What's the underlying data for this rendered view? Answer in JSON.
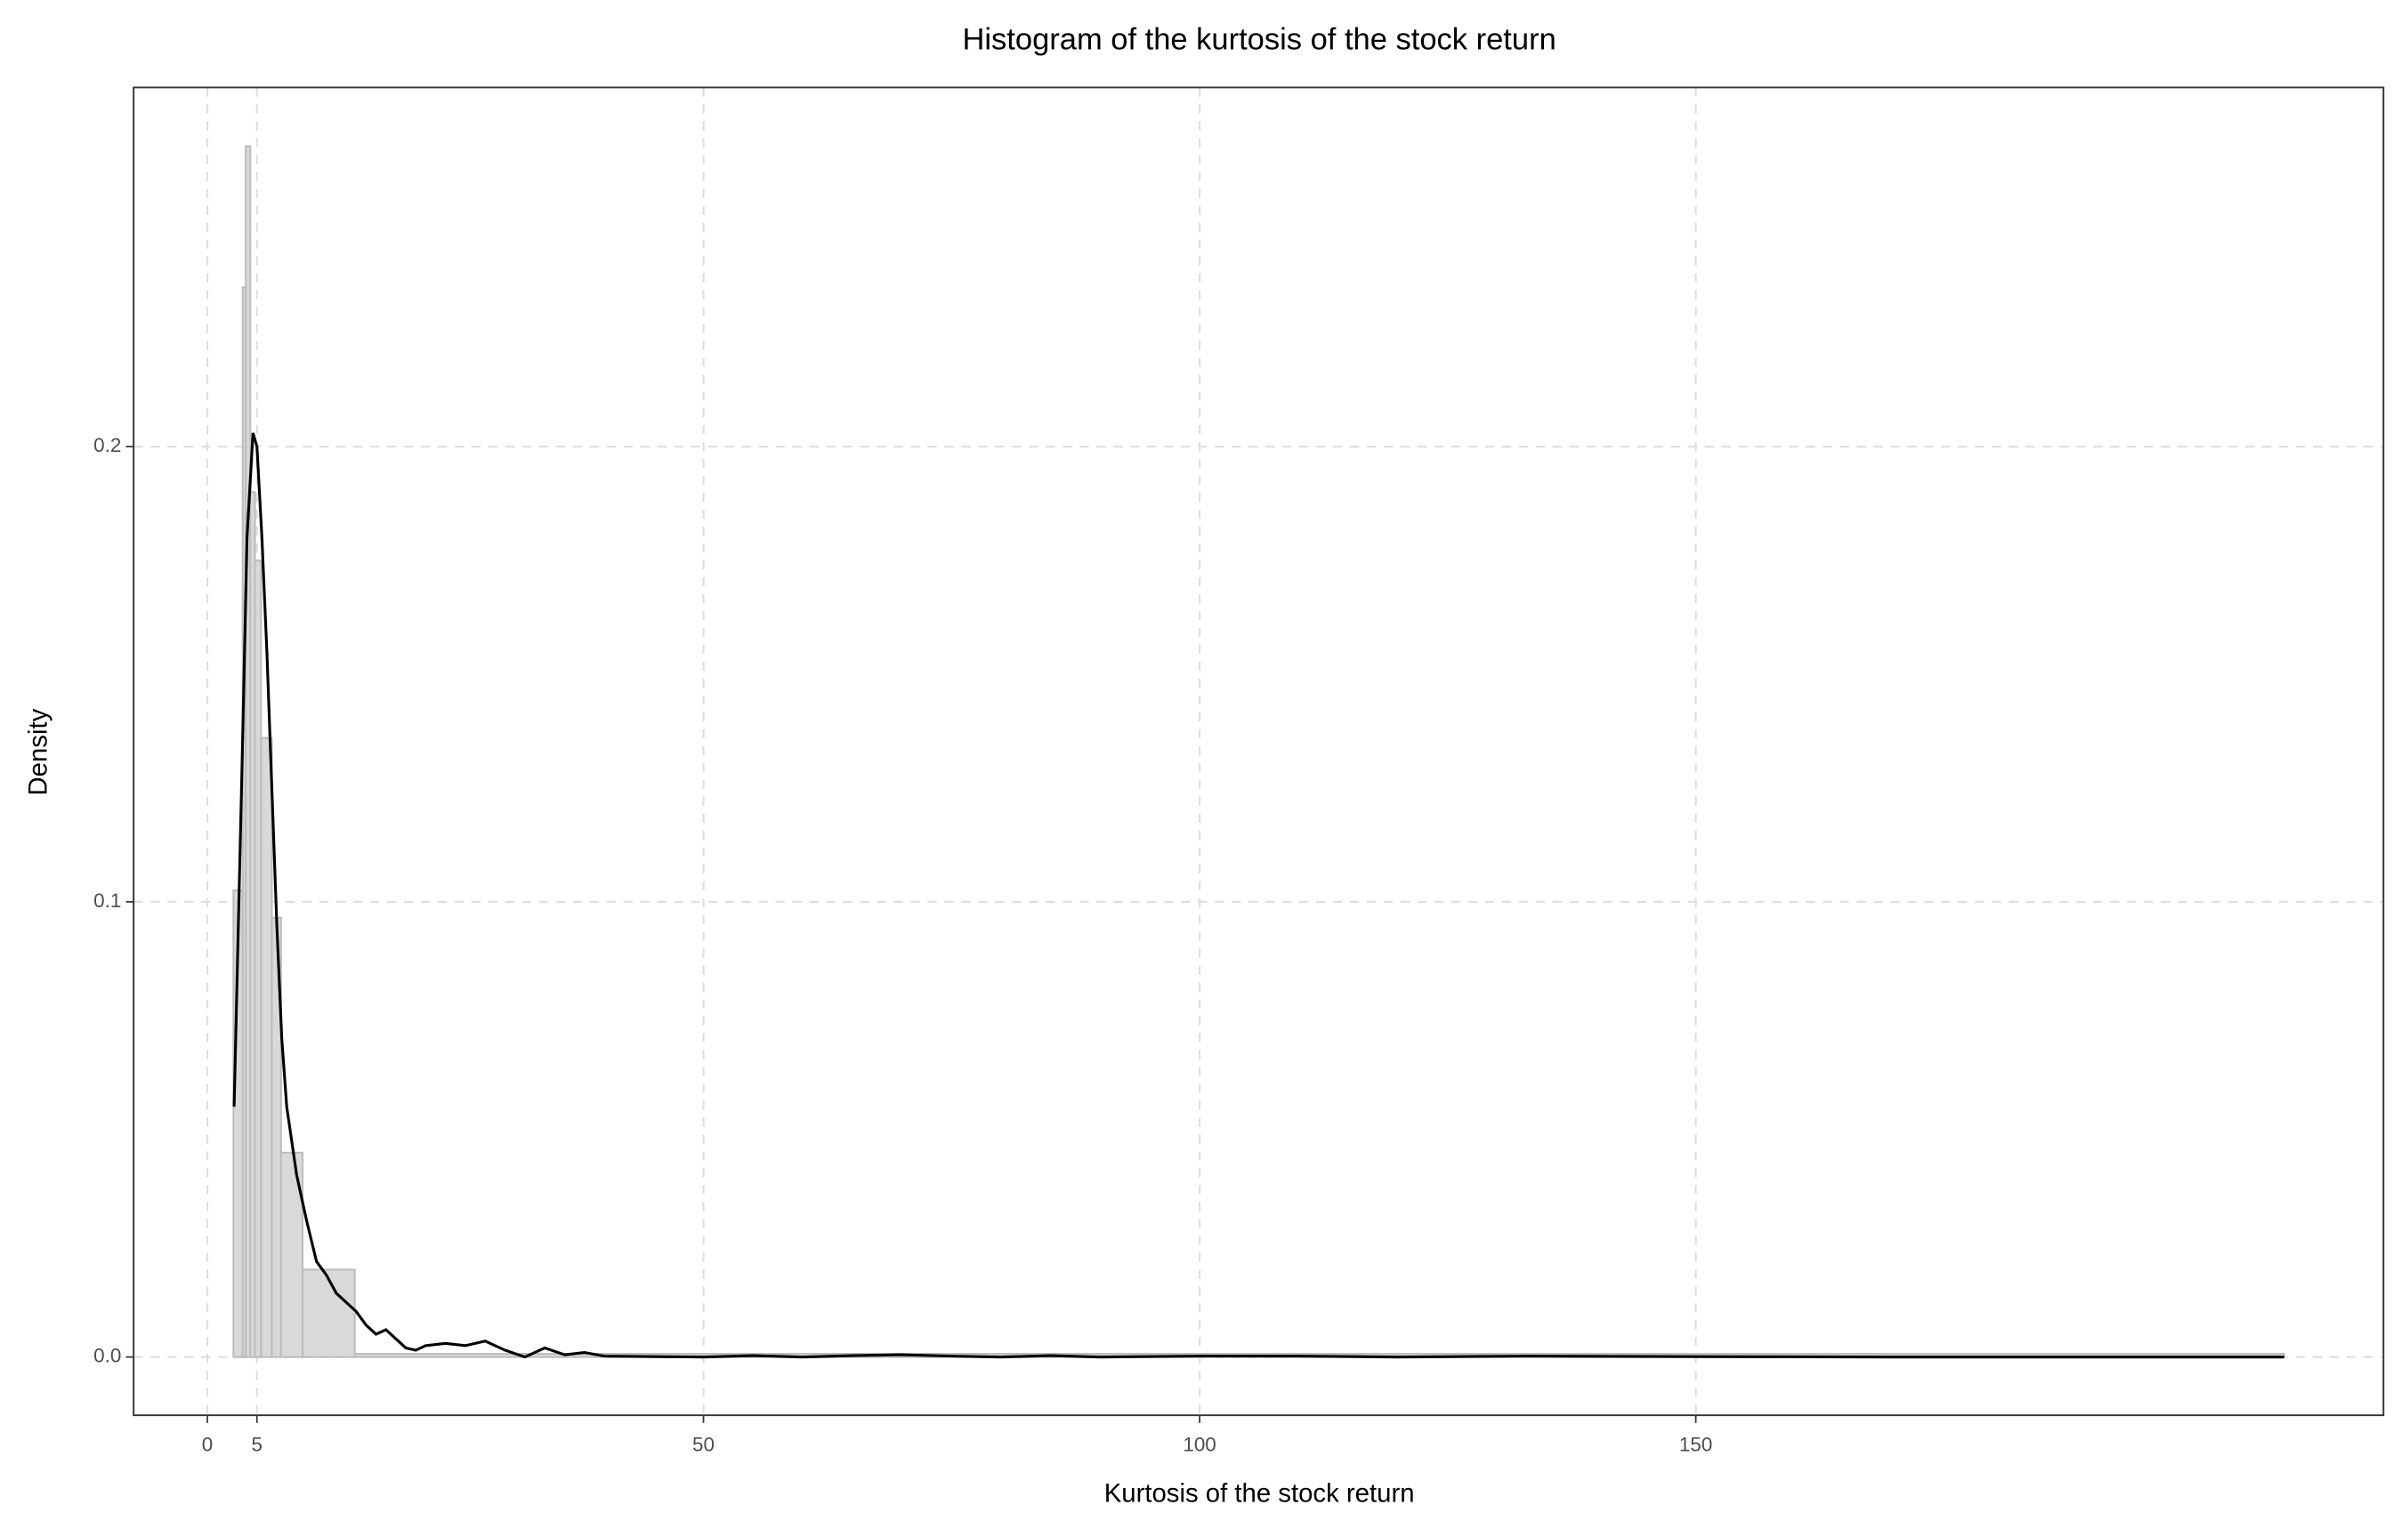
{
  "chart_data": {
    "type": "histogram",
    "title": "Histogram of the kurtosis of the stock return",
    "x_label": "Kurtosis of the stock return",
    "y_label": "Density",
    "bins": [
      2.63,
      3.56,
      3.87,
      4.33,
      4.8,
      5.42,
      6.5,
      7.43,
      9.6,
      14.86,
      209.3
    ],
    "values": [
      0.1025,
      0.235,
      0.266,
      0.19,
      0.175,
      0.136,
      0.0965,
      0.0449,
      0.0192,
      0.0007
    ],
    "color": "#d9d9d9",
    "edge_color": "#bdbdbd",
    "density": {
      "color": "#000000",
      "x": [
        2.7,
        3.5,
        4,
        4.6,
        5,
        5.5,
        6,
        6.5,
        7,
        7.5,
        8,
        9,
        10,
        11,
        12,
        13,
        14,
        15,
        16,
        17,
        18,
        19,
        20,
        21,
        22,
        24,
        26,
        28,
        30,
        32,
        34,
        36,
        38,
        40,
        45,
        50,
        55,
        60,
        65,
        70,
        75,
        80,
        85,
        90,
        100,
        110,
        120,
        133,
        150,
        170,
        209.3
      ],
      "y": [
        0.055,
        0.13,
        0.18,
        0.203,
        0.2,
        0.18,
        0.155,
        0.125,
        0.095,
        0.07,
        0.055,
        0.04,
        0.03,
        0.021,
        0.018,
        0.014,
        0.012,
        0.01,
        0.007,
        0.005,
        0.006,
        0.004,
        0.002,
        0.0015,
        0.0025,
        0.003,
        0.0025,
        0.0035,
        0.0015,
        0,
        0.002,
        0.0005,
        0.001,
        0.0002,
        0.0001,
        0,
        0.0003,
        0,
        0.0003,
        0.0005,
        0.0002,
        0,
        0.0003,
        0,
        0.0002,
        0.0002,
        0,
        0.0002,
        0.0001,
        0,
        0
      ]
    },
    "xlim": [
      -7.43,
      219.3
    ],
    "xticks": [
      0,
      5,
      50,
      100,
      150
    ],
    "ylim": [
      -0.0128,
      0.2789
    ],
    "yticks": [
      {
        "value": 0,
        "label": "0.0"
      },
      0.1,
      0.2
    ],
    "grid": true
  }
}
